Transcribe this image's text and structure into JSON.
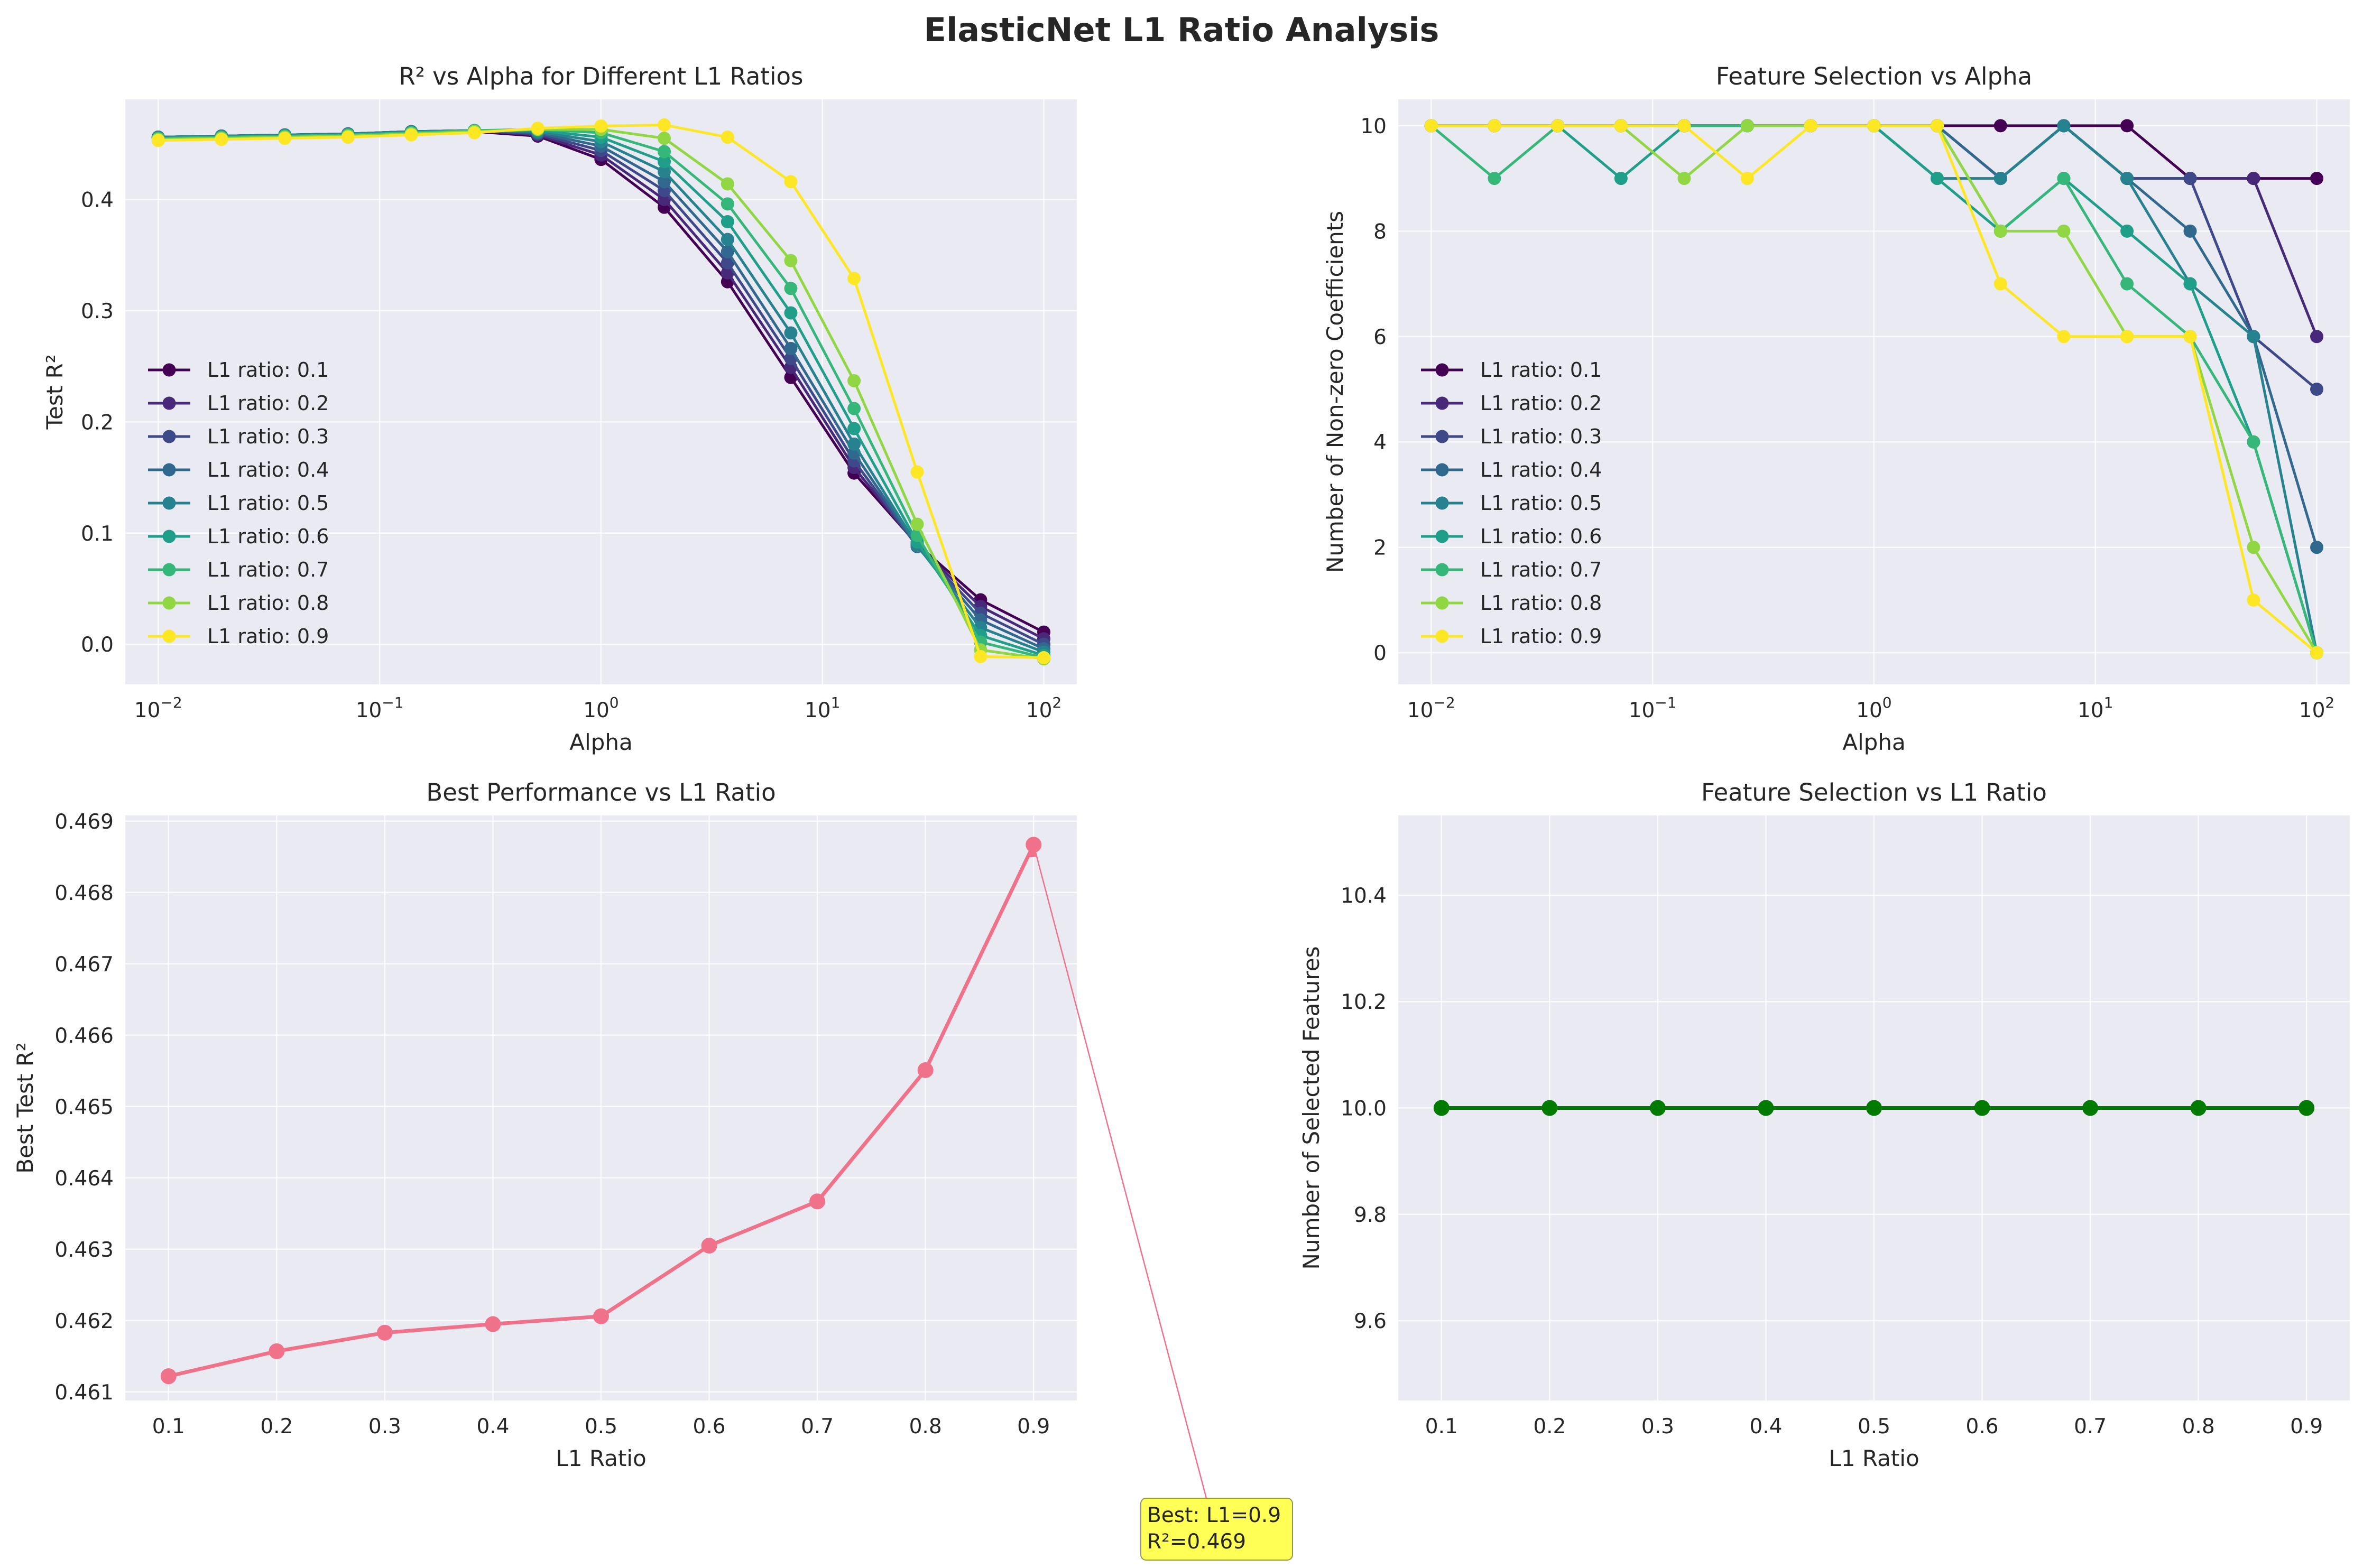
{
  "figure": {
    "title": "ElasticNet L1 Ratio Analysis"
  },
  "chart_data": [
    {
      "type": "line",
      "title": "R² vs Alpha for Different L1 Ratios",
      "xlabel": "Alpha",
      "ylabel": "Test R²",
      "x_scale": "log",
      "xlim": [
        0.0071,
        141
      ],
      "ylim": [
        -0.036,
        0.49
      ],
      "x_ticks": [
        {
          "value": 0.01,
          "base": "10",
          "exp": "−2"
        },
        {
          "value": 0.1,
          "base": "10",
          "exp": "−1"
        },
        {
          "value": 1,
          "base": "10",
          "exp": "0"
        },
        {
          "value": 10,
          "base": "10",
          "exp": "1"
        },
        {
          "value": 100,
          "base": "10",
          "exp": "2"
        }
      ],
      "y_ticks": [
        {
          "value": 0.0,
          "label": "0.0"
        },
        {
          "value": 0.1,
          "label": "0.1"
        },
        {
          "value": 0.2,
          "label": "0.2"
        },
        {
          "value": 0.3,
          "label": "0.3"
        },
        {
          "value": 0.4,
          "label": "0.4"
        }
      ],
      "grid": true,
      "legend_position": "center-left",
      "x": [
        0.01,
        0.0193,
        0.0373,
        0.072,
        0.139,
        0.268,
        0.518,
        1.0,
        1.93,
        3.73,
        7.2,
        13.9,
        26.8,
        51.8,
        100
      ],
      "series": [
        {
          "name": "L1 ratio: 0.1",
          "color": "#440154",
          "values": [
            0.456,
            0.457,
            0.458,
            0.459,
            0.461,
            0.461,
            0.457,
            0.436,
            0.393,
            0.326,
            0.24,
            0.154,
            0.09,
            0.04,
            0.011
          ]
        },
        {
          "name": "L1 ratio: 0.2",
          "color": "#482878",
          "values": [
            0.456,
            0.457,
            0.458,
            0.459,
            0.461,
            0.462,
            0.458,
            0.44,
            0.4,
            0.334,
            0.249,
            0.159,
            0.089,
            0.034,
            0.005
          ]
        },
        {
          "name": "L1 ratio: 0.3",
          "color": "#3e4989",
          "values": [
            0.456,
            0.457,
            0.458,
            0.459,
            0.461,
            0.462,
            0.459,
            0.444,
            0.408,
            0.343,
            0.257,
            0.165,
            0.088,
            0.028,
            0.0
          ]
        },
        {
          "name": "L1 ratio: 0.4",
          "color": "#31688e",
          "values": [
            0.456,
            0.457,
            0.458,
            0.459,
            0.461,
            0.462,
            0.46,
            0.448,
            0.416,
            0.353,
            0.266,
            0.172,
            0.088,
            0.022,
            -0.004
          ]
        },
        {
          "name": "L1 ratio: 0.5",
          "color": "#26828e",
          "values": [
            0.456,
            0.457,
            0.458,
            0.459,
            0.461,
            0.462,
            0.461,
            0.452,
            0.425,
            0.364,
            0.28,
            0.18,
            0.089,
            0.015,
            -0.007
          ]
        },
        {
          "name": "L1 ratio: 0.6",
          "color": "#1f9e89",
          "values": [
            0.455,
            0.456,
            0.457,
            0.458,
            0.46,
            0.462,
            0.462,
            0.456,
            0.434,
            0.38,
            0.298,
            0.194,
            0.092,
            0.008,
            -0.01
          ]
        },
        {
          "name": "L1 ratio: 0.7",
          "color": "#35b779",
          "values": [
            0.455,
            0.456,
            0.457,
            0.458,
            0.46,
            0.462,
            0.463,
            0.46,
            0.443,
            0.396,
            0.32,
            0.212,
            0.098,
            0.002,
            -0.012
          ]
        },
        {
          "name": "L1 ratio: 0.8",
          "color": "#90d743",
          "values": [
            0.454,
            0.455,
            0.456,
            0.457,
            0.459,
            0.461,
            0.463,
            0.463,
            0.455,
            0.414,
            0.345,
            0.237,
            0.108,
            -0.005,
            -0.013
          ]
        },
        {
          "name": "L1 ratio: 0.9",
          "color": "#fde725",
          "values": [
            0.453,
            0.454,
            0.455,
            0.456,
            0.458,
            0.46,
            0.464,
            0.466,
            0.467,
            0.456,
            0.416,
            0.329,
            0.155,
            -0.011,
            -0.012
          ]
        }
      ]
    },
    {
      "type": "line",
      "title": "Feature Selection vs Alpha",
      "xlabel": "Alpha",
      "ylabel": "Number of Non-zero Coefficients",
      "x_scale": "log",
      "xlim": [
        0.0071,
        141
      ],
      "ylim": [
        -0.6,
        10.5
      ],
      "x_ticks": [
        {
          "value": 0.01,
          "base": "10",
          "exp": "−2"
        },
        {
          "value": 0.1,
          "base": "10",
          "exp": "−1"
        },
        {
          "value": 1,
          "base": "10",
          "exp": "0"
        },
        {
          "value": 10,
          "base": "10",
          "exp": "1"
        },
        {
          "value": 100,
          "base": "10",
          "exp": "2"
        }
      ],
      "y_ticks": [
        {
          "value": 0,
          "label": "0"
        },
        {
          "value": 2,
          "label": "2"
        },
        {
          "value": 4,
          "label": "4"
        },
        {
          "value": 6,
          "label": "6"
        },
        {
          "value": 8,
          "label": "8"
        },
        {
          "value": 10,
          "label": "10"
        }
      ],
      "grid": true,
      "legend_position": "center-left",
      "x": [
        0.01,
        0.0193,
        0.0373,
        0.072,
        0.139,
        0.268,
        0.518,
        1.0,
        1.93,
        3.73,
        7.2,
        13.9,
        26.8,
        51.8,
        100
      ],
      "series": [
        {
          "name": "L1 ratio: 0.1",
          "color": "#440154",
          "values": [
            10,
            10,
            10,
            10,
            10,
            10,
            10,
            10,
            10,
            10,
            10,
            10,
            9,
            9,
            9
          ]
        },
        {
          "name": "L1 ratio: 0.2",
          "color": "#482878",
          "values": [
            10,
            10,
            10,
            10,
            10,
            10,
            10,
            10,
            10,
            9,
            10,
            9,
            9,
            9,
            6
          ]
        },
        {
          "name": "L1 ratio: 0.3",
          "color": "#3e4989",
          "values": [
            10,
            10,
            10,
            10,
            10,
            10,
            10,
            10,
            10,
            9,
            10,
            9,
            9,
            6,
            5
          ]
        },
        {
          "name": "L1 ratio: 0.4",
          "color": "#31688e",
          "values": [
            10,
            10,
            10,
            10,
            10,
            10,
            10,
            10,
            10,
            9,
            10,
            9,
            8,
            6,
            2
          ]
        },
        {
          "name": "L1 ratio: 0.5",
          "color": "#26828e",
          "values": [
            10,
            10,
            10,
            10,
            10,
            10,
            10,
            10,
            9,
            9,
            10,
            9,
            7,
            6,
            0
          ]
        },
        {
          "name": "L1 ratio: 0.6",
          "color": "#1f9e89",
          "values": [
            10,
            10,
            10,
            9,
            10,
            10,
            10,
            10,
            9,
            8,
            9,
            8,
            7,
            4,
            0
          ]
        },
        {
          "name": "L1 ratio: 0.7",
          "color": "#35b779",
          "values": [
            10,
            9,
            10,
            10,
            10,
            10,
            10,
            10,
            10,
            8,
            9,
            7,
            6,
            4,
            0
          ]
        },
        {
          "name": "L1 ratio: 0.8",
          "color": "#90d743",
          "values": [
            10,
            10,
            10,
            10,
            9,
            10,
            10,
            10,
            10,
            8,
            8,
            6,
            6,
            2,
            0
          ]
        },
        {
          "name": "L1 ratio: 0.9",
          "color": "#fde725",
          "values": [
            10,
            10,
            10,
            10,
            10,
            9,
            10,
            10,
            10,
            7,
            6,
            6,
            6,
            1,
            0
          ]
        }
      ]
    },
    {
      "type": "line",
      "title": "Best Performance vs L1 Ratio",
      "xlabel": "L1 Ratio",
      "ylabel": "Best Test R²",
      "x_scale": "linear",
      "xlim": [
        0.06,
        0.94
      ],
      "ylim": [
        0.46088,
        0.46908
      ],
      "x_ticks": [
        {
          "value": 0.1,
          "label": "0.1"
        },
        {
          "value": 0.2,
          "label": "0.2"
        },
        {
          "value": 0.3,
          "label": "0.3"
        },
        {
          "value": 0.4,
          "label": "0.4"
        },
        {
          "value": 0.5,
          "label": "0.5"
        },
        {
          "value": 0.6,
          "label": "0.6"
        },
        {
          "value": 0.7,
          "label": "0.7"
        },
        {
          "value": 0.8,
          "label": "0.8"
        },
        {
          "value": 0.9,
          "label": "0.9"
        }
      ],
      "y_ticks": [
        {
          "value": 0.461,
          "label": "0.461"
        },
        {
          "value": 0.462,
          "label": "0.462"
        },
        {
          "value": 0.463,
          "label": "0.463"
        },
        {
          "value": 0.464,
          "label": "0.464"
        },
        {
          "value": 0.465,
          "label": "0.465"
        },
        {
          "value": 0.466,
          "label": "0.466"
        },
        {
          "value": 0.467,
          "label": "0.467"
        },
        {
          "value": 0.468,
          "label": "0.468"
        },
        {
          "value": 0.469,
          "label": "0.469"
        }
      ],
      "grid": true,
      "x": [
        0.1,
        0.2,
        0.3,
        0.4,
        0.5,
        0.6,
        0.7,
        0.8,
        0.9
      ],
      "series": [
        {
          "name": "",
          "color": "#f0728a",
          "values": [
            0.46122,
            0.46157,
            0.46183,
            0.46195,
            0.46206,
            0.46305,
            0.46367,
            0.46551,
            0.46867
          ]
        }
      ],
      "annotation": {
        "line1": "Best: L1=0.9",
        "line2": "R²=0.469",
        "target_x": 0.9,
        "target_y": 0.46867,
        "box_color": "#ffff44",
        "arrow_color": "#f0728a"
      }
    },
    {
      "type": "line",
      "title": "Feature Selection vs L1 Ratio",
      "xlabel": "L1 Ratio",
      "ylabel": "Number of Selected Features",
      "x_scale": "linear",
      "xlim": [
        0.06,
        0.94
      ],
      "ylim": [
        9.45,
        10.55
      ],
      "x_ticks": [
        {
          "value": 0.1,
          "label": "0.1"
        },
        {
          "value": 0.2,
          "label": "0.2"
        },
        {
          "value": 0.3,
          "label": "0.3"
        },
        {
          "value": 0.4,
          "label": "0.4"
        },
        {
          "value": 0.5,
          "label": "0.5"
        },
        {
          "value": 0.6,
          "label": "0.6"
        },
        {
          "value": 0.7,
          "label": "0.7"
        },
        {
          "value": 0.8,
          "label": "0.8"
        },
        {
          "value": 0.9,
          "label": "0.9"
        }
      ],
      "y_ticks": [
        {
          "value": 9.6,
          "label": "9.6"
        },
        {
          "value": 9.8,
          "label": "9.8"
        },
        {
          "value": 10.0,
          "label": "10.0"
        },
        {
          "value": 10.2,
          "label": "10.2"
        },
        {
          "value": 10.4,
          "label": "10.4"
        }
      ],
      "grid": true,
      "x": [
        0.1,
        0.2,
        0.3,
        0.4,
        0.5,
        0.6,
        0.7,
        0.8,
        0.9
      ],
      "series": [
        {
          "name": "",
          "color": "#007a00",
          "values": [
            10,
            10,
            10,
            10,
            10,
            10,
            10,
            10,
            10
          ]
        }
      ]
    }
  ]
}
